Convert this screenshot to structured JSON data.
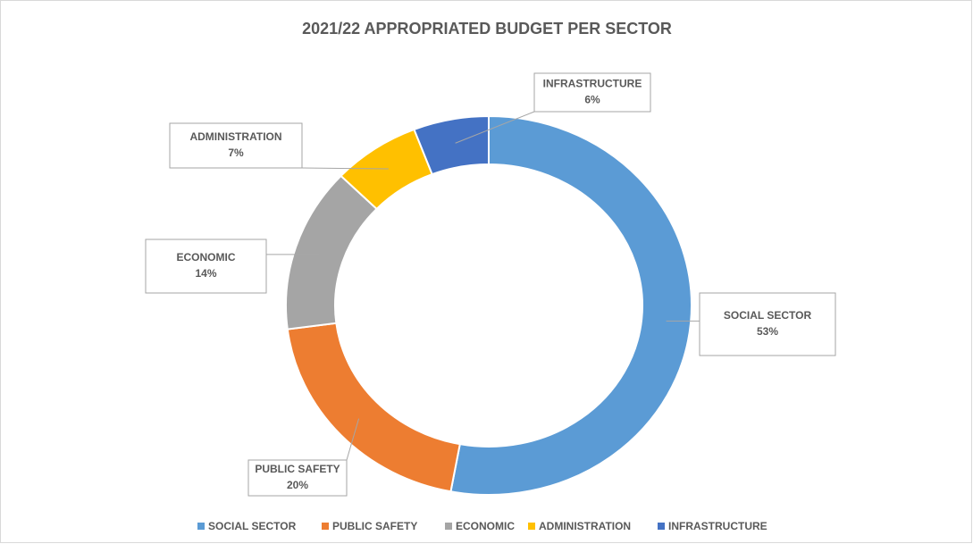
{
  "chart_data": {
    "type": "donut",
    "title": "2021/22 APPROPRIATED BUDGET PER SECTOR",
    "categories": [
      "SOCIAL SECTOR",
      "PUBLIC SAFETY",
      "ECONOMIC",
      "ADMINISTRATION",
      "INFRASTRUCTURE"
    ],
    "values": [
      53,
      20,
      14,
      7,
      6
    ],
    "value_labels": [
      "53%",
      "20%",
      "14%",
      "7%",
      "6%"
    ],
    "colors": [
      "#5b9bd5",
      "#ed7d31",
      "#a5a5a5",
      "#ffc000",
      "#4472c4"
    ],
    "legend": "bottom"
  }
}
